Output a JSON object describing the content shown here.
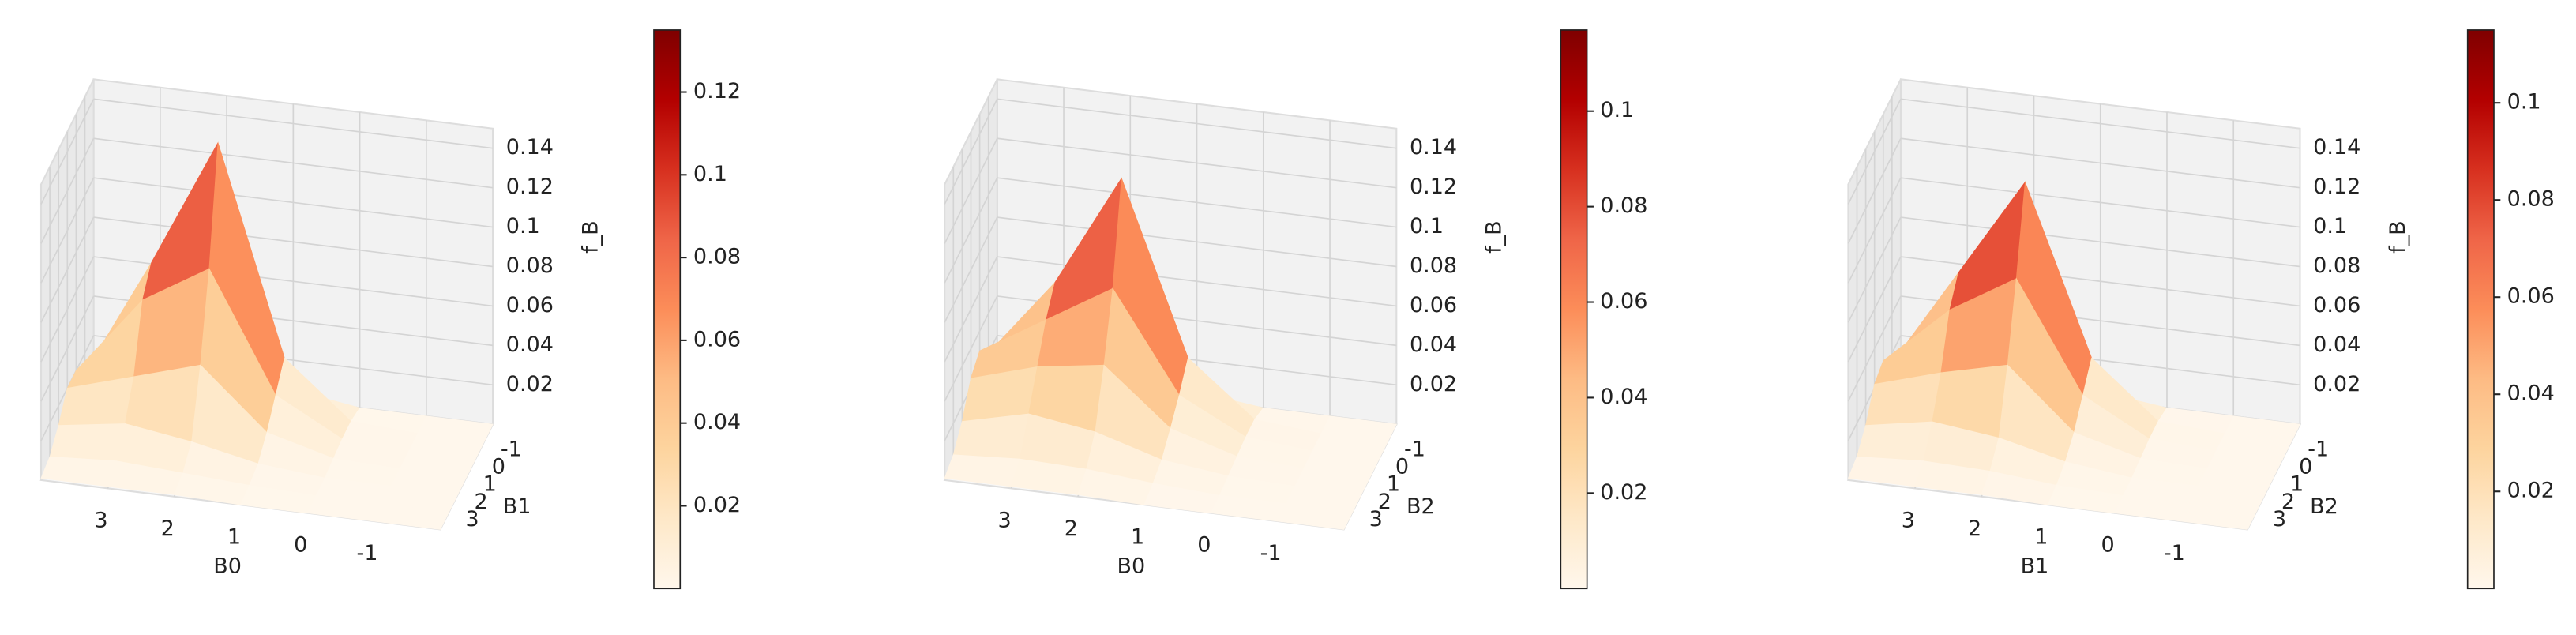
{
  "chart_data": [
    {
      "type": "surface",
      "x_label": "B0",
      "y_label": "B1",
      "z_label": "f_B",
      "x": [
        -2,
        -1,
        0,
        1,
        2,
        3,
        4
      ],
      "y": [
        -2,
        -1,
        0,
        1,
        2,
        3,
        4
      ],
      "z": [
        [
          0,
          0,
          0,
          0.005,
          0.03,
          0.02,
          0.003
        ],
        [
          0,
          0,
          0.002,
          0.03,
          0.135,
          0.07,
          0.01
        ],
        [
          0,
          0,
          0.002,
          0.02,
          0.08,
          0.06,
          0.02
        ],
        [
          0,
          0,
          0.001,
          0.01,
          0.04,
          0.03,
          0.02
        ],
        [
          0,
          0,
          0,
          0.003,
          0.01,
          0.015,
          0.01
        ],
        [
          0,
          0,
          0,
          0.001,
          0.003,
          0.005,
          0.003
        ],
        [
          0,
          0,
          0,
          0,
          0.001,
          0.001,
          0.001
        ]
      ],
      "xlim": [
        -2,
        4
      ],
      "ylim": [
        -2,
        4
      ],
      "zlim": [
        0,
        0.15
      ],
      "xticks": [
        3,
        2,
        1,
        0,
        -1
      ],
      "yticks": [
        -1,
        0,
        1,
        2,
        3
      ],
      "zticks": [
        0.02,
        0.04,
        0.06,
        0.08,
        0.1,
        0.12,
        0.14
      ],
      "colorbar_ticks": [
        0.02,
        0.04,
        0.06,
        0.08,
        0.1,
        0.12
      ]
    },
    {
      "type": "surface",
      "x_label": "B0",
      "y_label": "B2",
      "z_label": "f_B",
      "x": [
        -2,
        -1,
        0,
        1,
        2,
        3,
        4
      ],
      "y": [
        -2,
        -1,
        0,
        1,
        2,
        3,
        4
      ],
      "z": [
        [
          0,
          0,
          0,
          0.004,
          0.025,
          0.02,
          0.01
        ],
        [
          0,
          0,
          0.003,
          0.03,
          0.117,
          0.06,
          0.02
        ],
        [
          0,
          0,
          0.003,
          0.02,
          0.07,
          0.05,
          0.03
        ],
        [
          0,
          0,
          0.002,
          0.012,
          0.04,
          0.035,
          0.025
        ],
        [
          0,
          0,
          0.001,
          0.005,
          0.015,
          0.02,
          0.012
        ],
        [
          0,
          0,
          0,
          0.002,
          0.005,
          0.006,
          0.004
        ],
        [
          0,
          0,
          0,
          0,
          0.001,
          0.001,
          0.001
        ]
      ],
      "xlim": [
        -2,
        4
      ],
      "ylim": [
        -2,
        4
      ],
      "zlim": [
        0,
        0.15
      ],
      "xticks": [
        3,
        2,
        1,
        0,
        -1
      ],
      "yticks": [
        -1,
        0,
        1,
        2,
        3
      ],
      "zticks": [
        0.02,
        0.04,
        0.06,
        0.08,
        0.1,
        0.12,
        0.14
      ],
      "colorbar_ticks": [
        0.02,
        0.04,
        0.06,
        0.08,
        0.1
      ]
    },
    {
      "type": "surface",
      "x_label": "B1",
      "y_label": "B2",
      "z_label": "f_B",
      "x": [
        -2,
        -1,
        0,
        1,
        2,
        3,
        4
      ],
      "y": [
        -2,
        -1,
        0,
        1,
        2,
        3,
        4
      ],
      "z": [
        [
          0,
          0,
          0,
          0.004,
          0.028,
          0.02,
          0.006
        ],
        [
          0,
          0,
          0.002,
          0.03,
          0.115,
          0.065,
          0.015
        ],
        [
          0,
          0,
          0.002,
          0.02,
          0.075,
          0.055,
          0.025
        ],
        [
          0,
          0,
          0.001,
          0.01,
          0.04,
          0.032,
          0.022
        ],
        [
          0,
          0,
          0,
          0.004,
          0.012,
          0.016,
          0.01
        ],
        [
          0,
          0,
          0,
          0.001,
          0.004,
          0.005,
          0.003
        ],
        [
          0,
          0,
          0,
          0,
          0.001,
          0.001,
          0.001
        ]
      ],
      "xlim": [
        -2,
        4
      ],
      "ylim": [
        -2,
        4
      ],
      "zlim": [
        0,
        0.15
      ],
      "xticks": [
        3,
        2,
        1,
        0,
        -1
      ],
      "yticks": [
        -1,
        0,
        1,
        2,
        3
      ],
      "zticks": [
        0.02,
        0.04,
        0.06,
        0.08,
        0.1,
        0.12,
        0.14
      ],
      "colorbar_ticks": [
        0.02,
        0.04,
        0.06,
        0.08,
        0.1
      ]
    }
  ]
}
